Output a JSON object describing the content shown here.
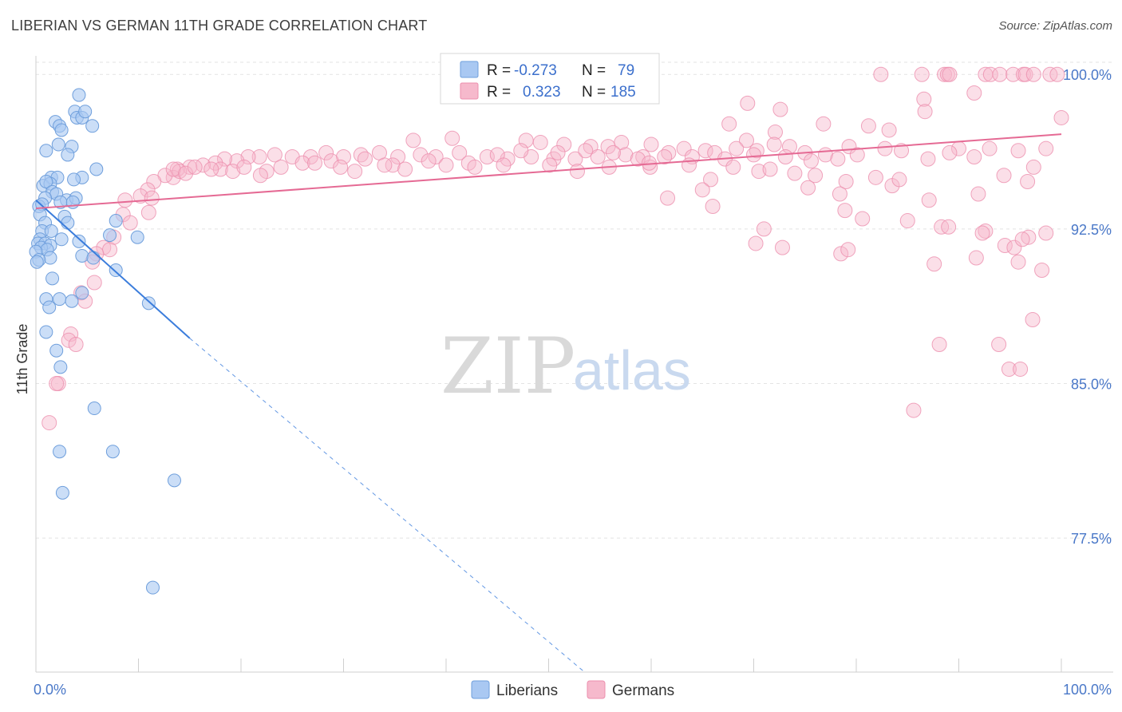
{
  "header": {
    "title": "LIBERIAN VS GERMAN 11TH GRADE CORRELATION CHART",
    "source": "Source: ZipAtlas.com"
  },
  "watermark": {
    "zip": "ZIP",
    "atlas": "atlas"
  },
  "colors": {
    "liberians_fill": "#a9c8f2",
    "liberians_stroke": "#6f9fdc",
    "liberians_line": "#3b7ddc",
    "germans_fill": "#f6b9cc",
    "germans_stroke": "#ec8fae",
    "germans_line": "#e56a94",
    "tick_text": "#4a78c8"
  },
  "legend": {
    "row1": {
      "r_label": "R = ",
      "r_value": "-0.273",
      "n_label": "N = ",
      "n_value": "79"
    },
    "row2": {
      "r_label": "R = ",
      "r_value": "0.323",
      "n_label": "N = ",
      "n_value": "185"
    }
  },
  "chart_data": {
    "type": "scatter",
    "title": "LIBERIAN VS GERMAN 11TH GRADE CORRELATION CHART",
    "xlabel": "",
    "ylabel": "11th Grade",
    "xlim": [
      0,
      100
    ],
    "ylim": [
      71.0,
      100.9
    ],
    "x_tick_labels": [
      "0.0%",
      "100.0%"
    ],
    "y_ticks": [
      77.5,
      85.0,
      92.5,
      100.0
    ],
    "y_tick_labels": [
      "77.5%",
      "85.0%",
      "92.5%",
      "100.0%"
    ],
    "grid": true,
    "legend_position": "top-center",
    "series": [
      {
        "name": "Liberians",
        "r": -0.273,
        "n": 79,
        "trend": {
          "x": [
            0,
            15
          ],
          "y": [
            93.9,
            87.2
          ],
          "dashed_to": [
            53.5,
            71.0
          ]
        },
        "points": [
          [
            4.2,
            99.0
          ],
          [
            3.8,
            98.2
          ],
          [
            4.0,
            97.9
          ],
          [
            4.5,
            97.9
          ],
          [
            4.8,
            98.2
          ],
          [
            5.5,
            97.5
          ],
          [
            1.9,
            97.7
          ],
          [
            2.3,
            97.5
          ],
          [
            2.5,
            97.3
          ],
          [
            2.2,
            96.6
          ],
          [
            3.5,
            96.5
          ],
          [
            1.0,
            96.3
          ],
          [
            3.1,
            96.1
          ],
          [
            5.9,
            95.4
          ],
          [
            1.5,
            95.0
          ],
          [
            2.1,
            95.0
          ],
          [
            4.5,
            95.0
          ],
          [
            0.7,
            94.6
          ],
          [
            1.4,
            94.7
          ],
          [
            1.0,
            94.8
          ],
          [
            3.7,
            94.9
          ],
          [
            1.6,
            94.3
          ],
          [
            2.0,
            94.2
          ],
          [
            0.9,
            94.0
          ],
          [
            3.0,
            93.9
          ],
          [
            3.9,
            94.0
          ],
          [
            2.4,
            93.8
          ],
          [
            3.6,
            93.8
          ],
          [
            0.3,
            93.6
          ],
          [
            0.6,
            93.7
          ],
          [
            2.8,
            93.1
          ],
          [
            0.4,
            93.2
          ],
          [
            0.9,
            92.8
          ],
          [
            3.1,
            92.8
          ],
          [
            7.8,
            92.9
          ],
          [
            0.6,
            92.4
          ],
          [
            1.5,
            92.4
          ],
          [
            7.2,
            92.2
          ],
          [
            9.9,
            92.1
          ],
          [
            2.5,
            92.0
          ],
          [
            0.4,
            92.0
          ],
          [
            0.2,
            91.8
          ],
          [
            0.9,
            91.8
          ],
          [
            1.4,
            91.7
          ],
          [
            4.2,
            91.9
          ],
          [
            0.5,
            91.6
          ],
          [
            1.1,
            91.5
          ],
          [
            0.0,
            91.4
          ],
          [
            4.5,
            91.2
          ],
          [
            1.4,
            91.1
          ],
          [
            0.3,
            91.0
          ],
          [
            5.6,
            91.1
          ],
          [
            0.1,
            90.9
          ],
          [
            7.8,
            90.5
          ],
          [
            1.6,
            90.1
          ],
          [
            4.5,
            89.4
          ],
          [
            2.3,
            89.1
          ],
          [
            1.0,
            89.1
          ],
          [
            3.5,
            89.0
          ],
          [
            11.0,
            88.9
          ],
          [
            1.3,
            88.7
          ],
          [
            1.0,
            87.5
          ],
          [
            2.0,
            86.6
          ],
          [
            2.4,
            85.8
          ],
          [
            5.7,
            83.8
          ],
          [
            2.3,
            81.7
          ],
          [
            7.5,
            81.7
          ],
          [
            2.6,
            79.7
          ],
          [
            13.5,
            80.3
          ],
          [
            11.4,
            75.1
          ]
        ]
      },
      {
        "name": "Germans",
        "r": 0.323,
        "n": 185,
        "trend": {
          "x": [
            0,
            100
          ],
          "y": [
            93.5,
            97.1
          ]
        },
        "points": [
          [
            82.4,
            100.0
          ],
          [
            86.4,
            100.0
          ],
          [
            88.6,
            100.0
          ],
          [
            88.9,
            100.0
          ],
          [
            89.1,
            100.0
          ],
          [
            92.6,
            100.0
          ],
          [
            93.1,
            100.0
          ],
          [
            94.0,
            100.0
          ],
          [
            95.3,
            100.0
          ],
          [
            96.3,
            100.0
          ],
          [
            96.5,
            100.0
          ],
          [
            97.3,
            100.0
          ],
          [
            98.9,
            100.0
          ],
          [
            99.6,
            100.0
          ],
          [
            91.5,
            99.1
          ],
          [
            86.6,
            98.8
          ],
          [
            69.4,
            98.6
          ],
          [
            72.6,
            98.3
          ],
          [
            86.7,
            98.2
          ],
          [
            100.0,
            97.9
          ],
          [
            76.8,
            97.6
          ],
          [
            81.2,
            97.5
          ],
          [
            83.2,
            97.3
          ],
          [
            67.6,
            97.6
          ],
          [
            72.1,
            97.2
          ],
          [
            69.3,
            96.8
          ],
          [
            72.0,
            96.6
          ],
          [
            73.5,
            96.5
          ],
          [
            57.1,
            96.7
          ],
          [
            47.8,
            96.8
          ],
          [
            40.6,
            96.9
          ],
          [
            36.8,
            96.8
          ],
          [
            49.2,
            96.7
          ],
          [
            51.5,
            96.6
          ],
          [
            54.1,
            96.5
          ],
          [
            55.8,
            96.5
          ],
          [
            60.0,
            96.6
          ],
          [
            63.2,
            96.4
          ],
          [
            65.3,
            96.3
          ],
          [
            68.3,
            96.4
          ],
          [
            75.0,
            96.2
          ],
          [
            77.0,
            96.1
          ],
          [
            90.0,
            96.4
          ],
          [
            79.3,
            96.5
          ],
          [
            70.3,
            96.3
          ],
          [
            66.2,
            96.2
          ],
          [
            61.7,
            96.2
          ],
          [
            59.2,
            96.0
          ],
          [
            57.5,
            96.1
          ],
          [
            54.8,
            96.0
          ],
          [
            52.6,
            95.9
          ],
          [
            50.5,
            95.9
          ],
          [
            48.3,
            96.0
          ],
          [
            46.0,
            95.9
          ],
          [
            44.0,
            96.0
          ],
          [
            41.3,
            96.2
          ],
          [
            39.0,
            96.0
          ],
          [
            37.5,
            96.1
          ],
          [
            35.3,
            96.0
          ],
          [
            33.5,
            96.2
          ],
          [
            31.7,
            96.1
          ],
          [
            30.0,
            96.0
          ],
          [
            28.3,
            96.2
          ],
          [
            26.8,
            96.0
          ],
          [
            25.0,
            96.0
          ],
          [
            23.3,
            96.1
          ],
          [
            21.8,
            96.0
          ],
          [
            20.7,
            96.0
          ],
          [
            19.6,
            95.8
          ],
          [
            18.4,
            95.9
          ],
          [
            17.5,
            95.7
          ],
          [
            16.3,
            95.6
          ],
          [
            15.0,
            95.5
          ],
          [
            13.8,
            95.4
          ],
          [
            13.4,
            95.0
          ],
          [
            12.6,
            95.1
          ],
          [
            11.5,
            94.8
          ],
          [
            10.9,
            94.4
          ],
          [
            10.2,
            94.1
          ],
          [
            8.7,
            93.9
          ],
          [
            11.3,
            94.0
          ],
          [
            14.0,
            95.3
          ],
          [
            18.0,
            95.4
          ],
          [
            22.5,
            95.3
          ],
          [
            26.0,
            95.7
          ],
          [
            28.8,
            95.8
          ],
          [
            32.1,
            95.9
          ],
          [
            34.8,
            95.6
          ],
          [
            38.3,
            95.8
          ],
          [
            42.2,
            95.7
          ],
          [
            45.0,
            96.1
          ],
          [
            47.3,
            96.3
          ],
          [
            50.9,
            96.2
          ],
          [
            53.6,
            96.3
          ],
          [
            56.3,
            96.2
          ],
          [
            58.7,
            95.9
          ],
          [
            61.3,
            96.0
          ],
          [
            64.0,
            96.0
          ],
          [
            67.2,
            95.9
          ],
          [
            70.0,
            96.1
          ],
          [
            73.1,
            96.0
          ],
          [
            75.6,
            95.8
          ],
          [
            78.2,
            95.9
          ],
          [
            80.1,
            96.1
          ],
          [
            82.8,
            96.4
          ],
          [
            84.4,
            96.3
          ],
          [
            87.0,
            95.9
          ],
          [
            89.1,
            96.2
          ],
          [
            93.0,
            96.4
          ],
          [
            91.5,
            96.0
          ],
          [
            95.8,
            96.3
          ],
          [
            98.5,
            96.4
          ],
          [
            13.4,
            95.4
          ],
          [
            14.6,
            95.2
          ],
          [
            15.5,
            95.5
          ],
          [
            17.1,
            95.4
          ],
          [
            19.2,
            95.3
          ],
          [
            20.3,
            95.5
          ],
          [
            21.9,
            95.1
          ],
          [
            23.9,
            95.5
          ],
          [
            27.2,
            95.7
          ],
          [
            29.7,
            95.5
          ],
          [
            31.1,
            95.3
          ],
          [
            34.0,
            95.6
          ],
          [
            36.0,
            95.4
          ],
          [
            40.0,
            95.6
          ],
          [
            42.8,
            95.5
          ],
          [
            45.6,
            95.6
          ],
          [
            50.1,
            95.6
          ],
          [
            52.8,
            95.3
          ],
          [
            55.9,
            95.5
          ],
          [
            59.9,
            95.5
          ],
          [
            63.7,
            95.6
          ],
          [
            68.0,
            95.5
          ],
          [
            70.5,
            95.3
          ],
          [
            71.6,
            95.4
          ],
          [
            74.0,
            95.2
          ],
          [
            76.0,
            95.1
          ],
          [
            79.0,
            94.8
          ],
          [
            81.9,
            95.0
          ],
          [
            78.4,
            94.2
          ],
          [
            83.5,
            94.6
          ],
          [
            75.3,
            94.5
          ],
          [
            65.8,
            94.9
          ],
          [
            84.2,
            94.9
          ],
          [
            87.1,
            93.9
          ],
          [
            91.9,
            94.2
          ],
          [
            94.4,
            95.1
          ],
          [
            96.7,
            94.8
          ],
          [
            97.3,
            95.5
          ],
          [
            59.8,
            95.7
          ],
          [
            61.6,
            94.0
          ],
          [
            65.0,
            94.4
          ],
          [
            66.0,
            93.6
          ],
          [
            78.9,
            93.4
          ],
          [
            80.6,
            93.0
          ],
          [
            85.0,
            92.9
          ],
          [
            88.3,
            92.6
          ],
          [
            89.0,
            92.6
          ],
          [
            92.6,
            92.4
          ],
          [
            94.5,
            91.7
          ],
          [
            95.4,
            91.6
          ],
          [
            96.8,
            92.1
          ],
          [
            98.5,
            92.3
          ],
          [
            71.0,
            92.5
          ],
          [
            72.8,
            91.6
          ],
          [
            70.2,
            91.8
          ],
          [
            78.5,
            91.3
          ],
          [
            79.2,
            91.5
          ],
          [
            87.6,
            90.8
          ],
          [
            91.7,
            91.1
          ],
          [
            95.8,
            90.9
          ],
          [
            97.2,
            88.1
          ],
          [
            94.9,
            85.7
          ],
          [
            96.0,
            85.7
          ],
          [
            93.9,
            86.9
          ],
          [
            88.1,
            86.9
          ],
          [
            85.6,
            83.7
          ],
          [
            92.3,
            92.3
          ],
          [
            96.2,
            92.0
          ],
          [
            98.1,
            90.5
          ],
          [
            11.0,
            93.3
          ],
          [
            8.5,
            93.2
          ],
          [
            9.2,
            92.8
          ],
          [
            7.6,
            92.1
          ],
          [
            6.6,
            91.6
          ],
          [
            7.2,
            91.5
          ],
          [
            5.9,
            91.3
          ],
          [
            5.5,
            90.9
          ],
          [
            5.7,
            89.9
          ],
          [
            4.4,
            89.4
          ],
          [
            4.8,
            89.0
          ],
          [
            3.4,
            87.4
          ],
          [
            3.2,
            87.1
          ],
          [
            3.9,
            86.9
          ],
          [
            2.2,
            85.0
          ],
          [
            2.0,
            85.0
          ],
          [
            1.3,
            83.1
          ]
        ]
      }
    ]
  }
}
